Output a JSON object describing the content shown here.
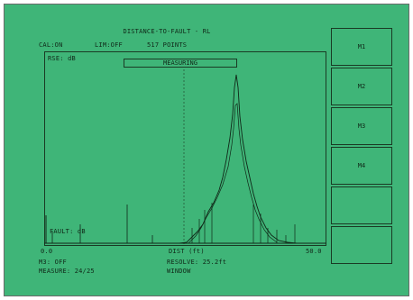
{
  "header": {
    "title": "DISTANCE-TO-FAULT - RL",
    "cal_status": "CAL:ON",
    "lim_status": "LIM:OFF",
    "points": "517 POINTS",
    "scale_label": "RSE: dB"
  },
  "status_badge": "MEASURING",
  "plot": {
    "y_bottom_label": "FAULT: dB",
    "x_left_label": "0.0",
    "x_center_label": "DIST (ft)",
    "x_right_label": "50.0"
  },
  "softkeys": [
    {
      "label": "M1"
    },
    {
      "label": "M2"
    },
    {
      "label": "M3"
    },
    {
      "label": "M4"
    },
    {
      "label": ""
    },
    {
      "label": ""
    }
  ],
  "footer": {
    "left_top": "M3: OFF",
    "left_bottom": "MEASURE: 24/25",
    "center_top": "RESOLVE: 25.2ft",
    "center_bottom": "WINDOW"
  },
  "colors": {
    "screen": "#3fb578",
    "trace": "#102818"
  }
}
